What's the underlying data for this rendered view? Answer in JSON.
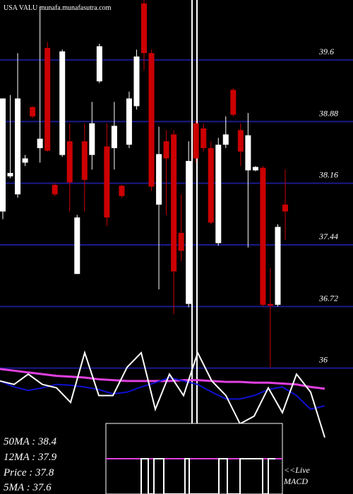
{
  "chart_data": {
    "type": "candlestick",
    "title": "USA VALU munafa.munafasutra.com",
    "ylim": [
      34.53,
      40.3
    ],
    "yticks": [
      39.6,
      38.88,
      38.16,
      37.44,
      36.72,
      36
    ],
    "grid": true,
    "grid_color": "#1a1a8c",
    "up_color": "#ffffff",
    "down_color": "#cc0000",
    "open": [
      37.83,
      38.24,
      38.03,
      38.4,
      39.05,
      38.57,
      39.74,
      38.14,
      38.49,
      38.65,
      37.1,
      38.65,
      38.49,
      39.35,
      38.59,
      38.57,
      38.13,
      38.61,
      39.06,
      40.26,
      39.68,
      37.91,
      38.65,
      38.73,
      37.58,
      36.75,
      38.86,
      38.8,
      38.57,
      37.46,
      38.61,
      39.25,
      38.78,
      38.31,
      38.31,
      38.34,
      36.75,
      36.74,
      37.91
    ],
    "high": [
      39.15,
      39.19,
      39.68,
      38.49,
      39.06,
      40.22,
      39.81,
      38.16,
      39.72,
      38.86,
      37.79,
      38.86,
      39.11,
      39.79,
      38.86,
      39.11,
      38.14,
      39.23,
      39.72,
      40.3,
      39.72,
      38.82,
      38.78,
      38.78,
      38.03,
      38.65,
      38.9,
      38.86,
      38.65,
      38.69,
      38.94,
      39.27,
      38.86,
      38.98,
      38.36,
      38.36,
      37.17,
      37.68,
      38.32
    ],
    "low": [
      37.74,
      38.22,
      37.99,
      38.36,
      38.92,
      38.4,
      38.53,
      38.01,
      38.47,
      37.83,
      37.1,
      37.83,
      38.32,
      39.33,
      37.66,
      38.32,
      37.99,
      38.57,
      39.02,
      39.48,
      38.07,
      36.92,
      37.79,
      36.63,
      37.25,
      36.71,
      38.4,
      38.53,
      37.68,
      37.43,
      38.57,
      38.94,
      38.36,
      37.41,
      38.3,
      36.72,
      36.01,
      36.72,
      37.5
    ],
    "close": [
      39.15,
      38.28,
      39.15,
      38.45,
      38.94,
      38.68,
      38.54,
      38.03,
      39.7,
      38.17,
      37.76,
      38.2,
      38.86,
      39.76,
      37.76,
      38.83,
      38.01,
      39.15,
      39.64,
      39.68,
      38.12,
      38.5,
      38.45,
      37.13,
      37.37,
      38.42,
      38.45,
      38.57,
      37.7,
      38.61,
      38.73,
      38.96,
      38.53,
      38.72,
      38.35,
      36.74,
      36.73,
      37.65,
      37.83
    ],
    "series": [
      {
        "color": "#e040e0",
        "values": [
          35.99,
          35.97,
          35.95,
          35.93,
          35.91,
          35.9,
          35.89,
          35.87,
          35.86,
          35.85,
          35.85,
          35.85,
          35.85,
          35.86,
          35.86,
          35.85,
          35.84,
          35.84,
          35.83,
          35.83,
          35.82,
          35.81,
          35.78,
          35.76
        ]
      },
      {
        "color": "#1010d0",
        "values": [
          35.85,
          35.78,
          35.74,
          35.77,
          35.81,
          35.8,
          35.78,
          35.75,
          35.7,
          35.72,
          35.78,
          35.83,
          35.89,
          35.85,
          35.81,
          35.72,
          35.64,
          35.64,
          35.68,
          35.75,
          35.78,
          35.68,
          35.52,
          35.56
        ]
      },
      {
        "color": "#ffffff",
        "values": [
          35.85,
          35.81,
          35.93,
          35.81,
          35.77,
          35.6,
          36.18,
          35.68,
          35.68,
          36.01,
          36.18,
          35.52,
          35.93,
          35.68,
          36.18,
          35.85,
          35.68,
          35.35,
          35.44,
          35.77,
          35.48,
          35.93,
          35.72,
          35.19
        ]
      }
    ],
    "ma_labels": [
      "50MA : 38.4",
      "12MA : 37.9",
      "Price   : 37.8",
      "5MA : 37.6"
    ],
    "macd_label": [
      "<<Live",
      "MACD"
    ]
  }
}
